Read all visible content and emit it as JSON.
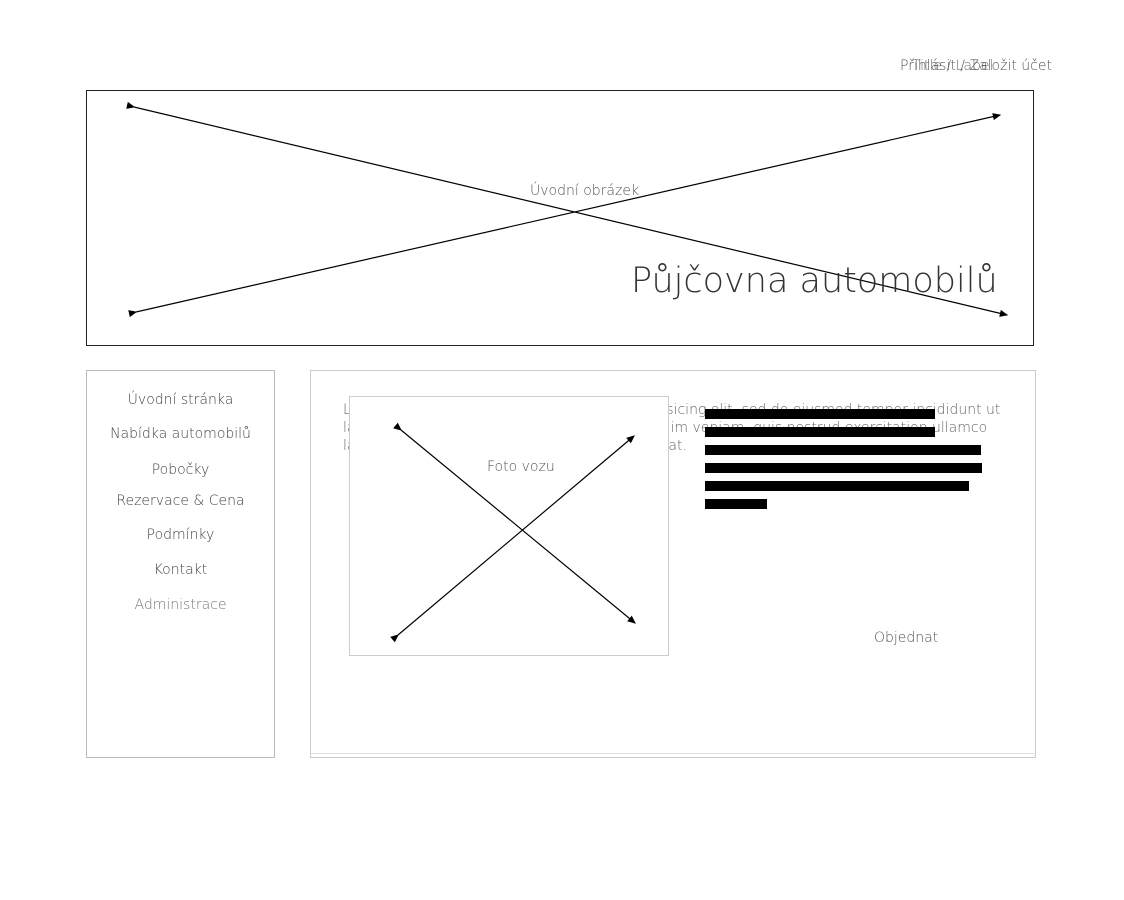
{
  "header": {
    "login_link": "Přihlásit / Založit účet",
    "overlay_label": "Title / Label"
  },
  "hero": {
    "image_caption": "Úvodní obrázek",
    "title": "Půjčovna automobilů"
  },
  "sidebar": {
    "items": [
      {
        "label": "Úvodní stránka"
      },
      {
        "label": "Nabídka automobilů"
      },
      {
        "label": "Pobočky"
      },
      {
        "label": "Rezervace & Cena"
      },
      {
        "label": "Podmínky"
      },
      {
        "label": "Kontakt"
      },
      {
        "label": "Administrace"
      }
    ]
  },
  "main": {
    "description": "Lorem ipsum dolor sit amet, consectetur adipisicing elit, sed do eiusmod tempor incididunt ut labore et dolore magna aliqua. Ut enim ad minim veniam, quis nostrud exercitation ullamco laboris nisi ut aliquip ex ea commodo consequat.",
    "photo_caption": "Foto vozu",
    "order_label": "Objednat"
  }
}
